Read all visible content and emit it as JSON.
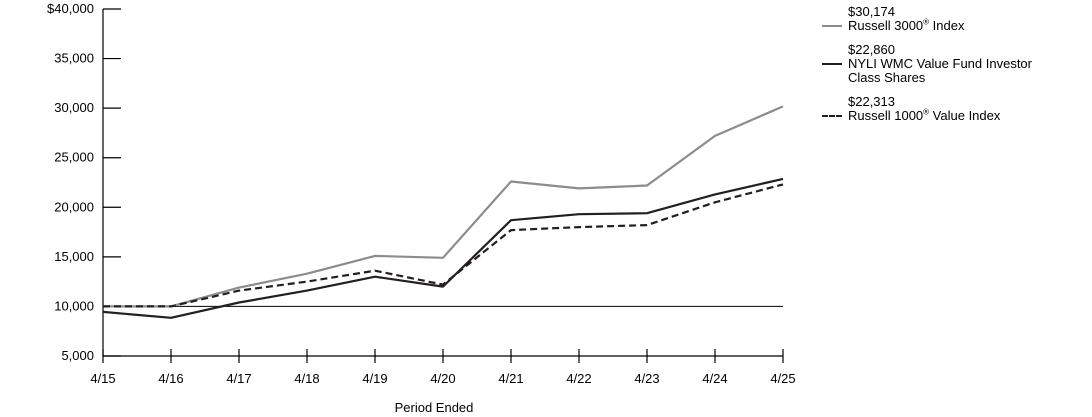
{
  "chart_data": {
    "type": "line",
    "xlabel": "Period Ended",
    "ylabel": "",
    "categories": [
      "4/15",
      "4/16",
      "4/17",
      "4/18",
      "4/19",
      "4/20",
      "4/21",
      "4/22",
      "4/23",
      "4/24",
      "4/25"
    ],
    "ylim": [
      5000,
      40000
    ],
    "yticks": [
      {
        "value": 40000,
        "label": "$40,000"
      },
      {
        "value": 35000,
        "label": "35,000"
      },
      {
        "value": 30000,
        "label": "30,000"
      },
      {
        "value": 25000,
        "label": "25,000"
      },
      {
        "value": 20000,
        "label": "20,000"
      },
      {
        "value": 15000,
        "label": "15,000"
      },
      {
        "value": 10000,
        "label": "10,000"
      },
      {
        "value": 5000,
        "label": "5,000"
      }
    ],
    "reference_line": 10000,
    "series": [
      {
        "key": "r3000",
        "name_text": "Russell 3000",
        "name_sup": "®",
        "name_after": " Index",
        "end_value_label": "$30,174",
        "color": "#8c8c8c",
        "dash": "solid",
        "values": [
          10000,
          10000,
          11900,
          13300,
          15100,
          14900,
          22600,
          21900,
          22200,
          27200,
          30174
        ]
      },
      {
        "key": "nyli",
        "name_line1": "NYLI WMC Value Fund Investor",
        "name_line2": "Class Shares",
        "end_value_label": "$22,860",
        "color": "#231f20",
        "dash": "solid",
        "values": [
          9450,
          8850,
          10400,
          11600,
          13000,
          12000,
          18700,
          19300,
          19400,
          21300,
          22860
        ]
      },
      {
        "key": "r1000v",
        "name_text": "Russell 1000",
        "name_sup": "®",
        "name_after": " Value Index",
        "end_value_label": "$22,313",
        "color": "#231f20",
        "dash": "dashed",
        "values": [
          10000,
          10000,
          11600,
          12500,
          13600,
          12200,
          17700,
          18000,
          18200,
          20500,
          22313
        ]
      }
    ]
  }
}
